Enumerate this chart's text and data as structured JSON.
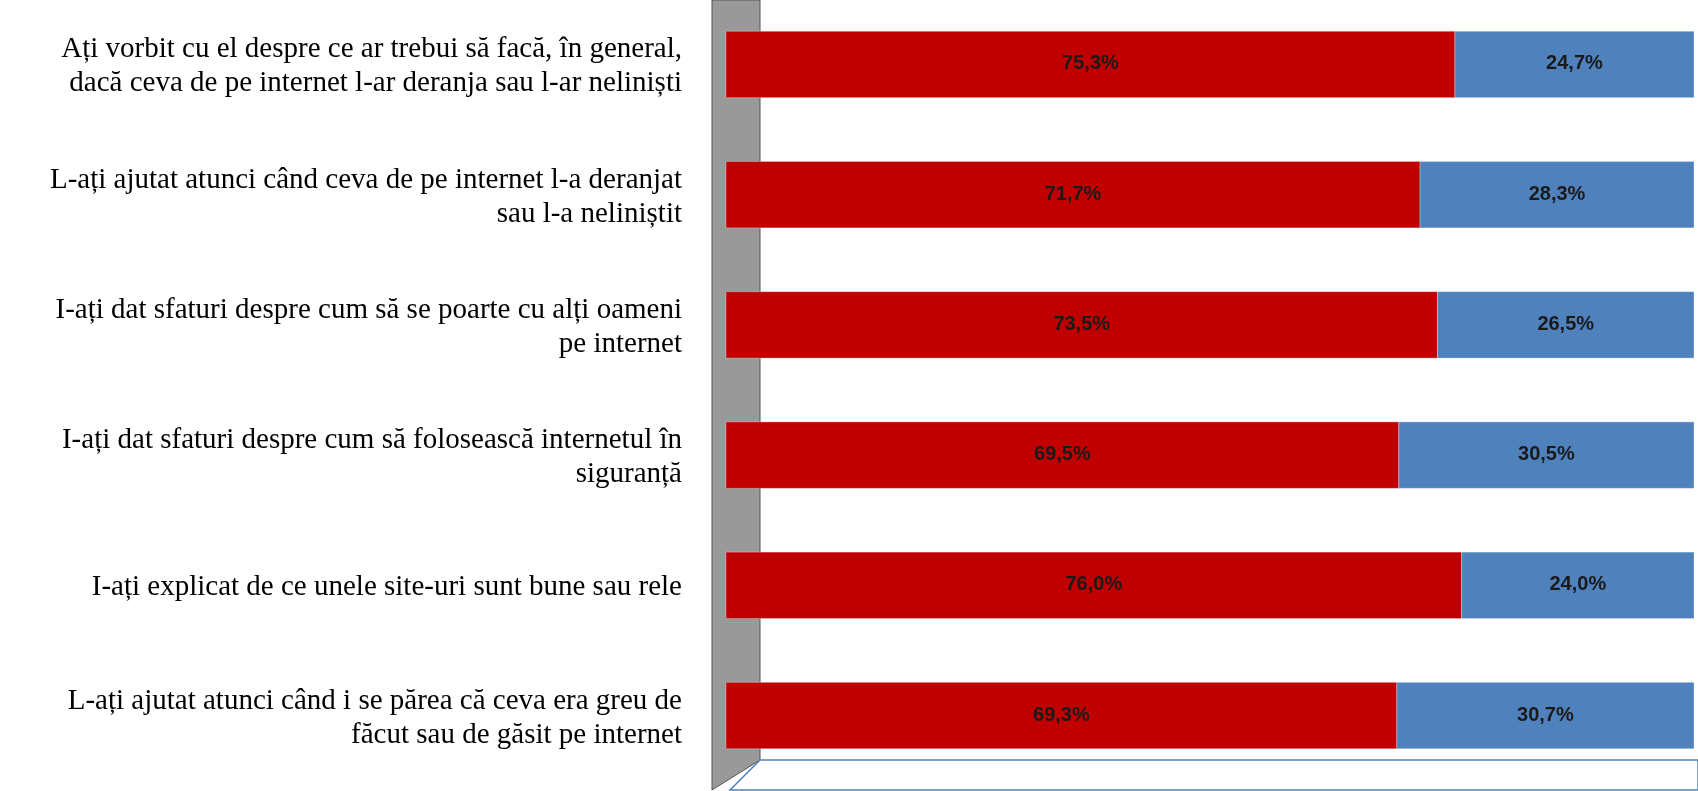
{
  "chart_data": {
    "type": "bar",
    "orientation": "horizontal",
    "stacked": true,
    "categories": [
      "Ați vorbit cu el despre ce ar trebui să facă, în general, dacă ceva de pe internet l-ar deranja sau l-ar neliniști",
      "L-ați ajutat atunci când ceva de pe internet l-a deranjat sau l-a neliniștit",
      "I-ați dat sfaturi despre cum să se poarte cu alți oameni pe internet",
      "I-ați dat sfaturi despre cum să folosească internetul în siguranță",
      "I-ați explicat de ce unele site-uri sunt bune sau rele",
      "L-ați ajutat atunci când i se părea că ceva era greu de făcut sau de găsit pe internet"
    ],
    "series": [
      {
        "color": "#c00000",
        "values": [
          75.3,
          71.7,
          73.5,
          69.5,
          76.0,
          69.3
        ],
        "value_labels": [
          "75,3%",
          "71,7%",
          "73,5%",
          "69,5%",
          "76,0%",
          "69,3%"
        ]
      },
      {
        "color": "#4f81bd",
        "values": [
          24.7,
          28.3,
          26.5,
          30.5,
          24.0,
          30.7
        ],
        "value_labels": [
          "24,7%",
          "28,3%",
          "26,5%",
          "30,5%",
          "24,0%",
          "30,7%"
        ]
      }
    ],
    "xlim": [
      0,
      100
    ]
  }
}
